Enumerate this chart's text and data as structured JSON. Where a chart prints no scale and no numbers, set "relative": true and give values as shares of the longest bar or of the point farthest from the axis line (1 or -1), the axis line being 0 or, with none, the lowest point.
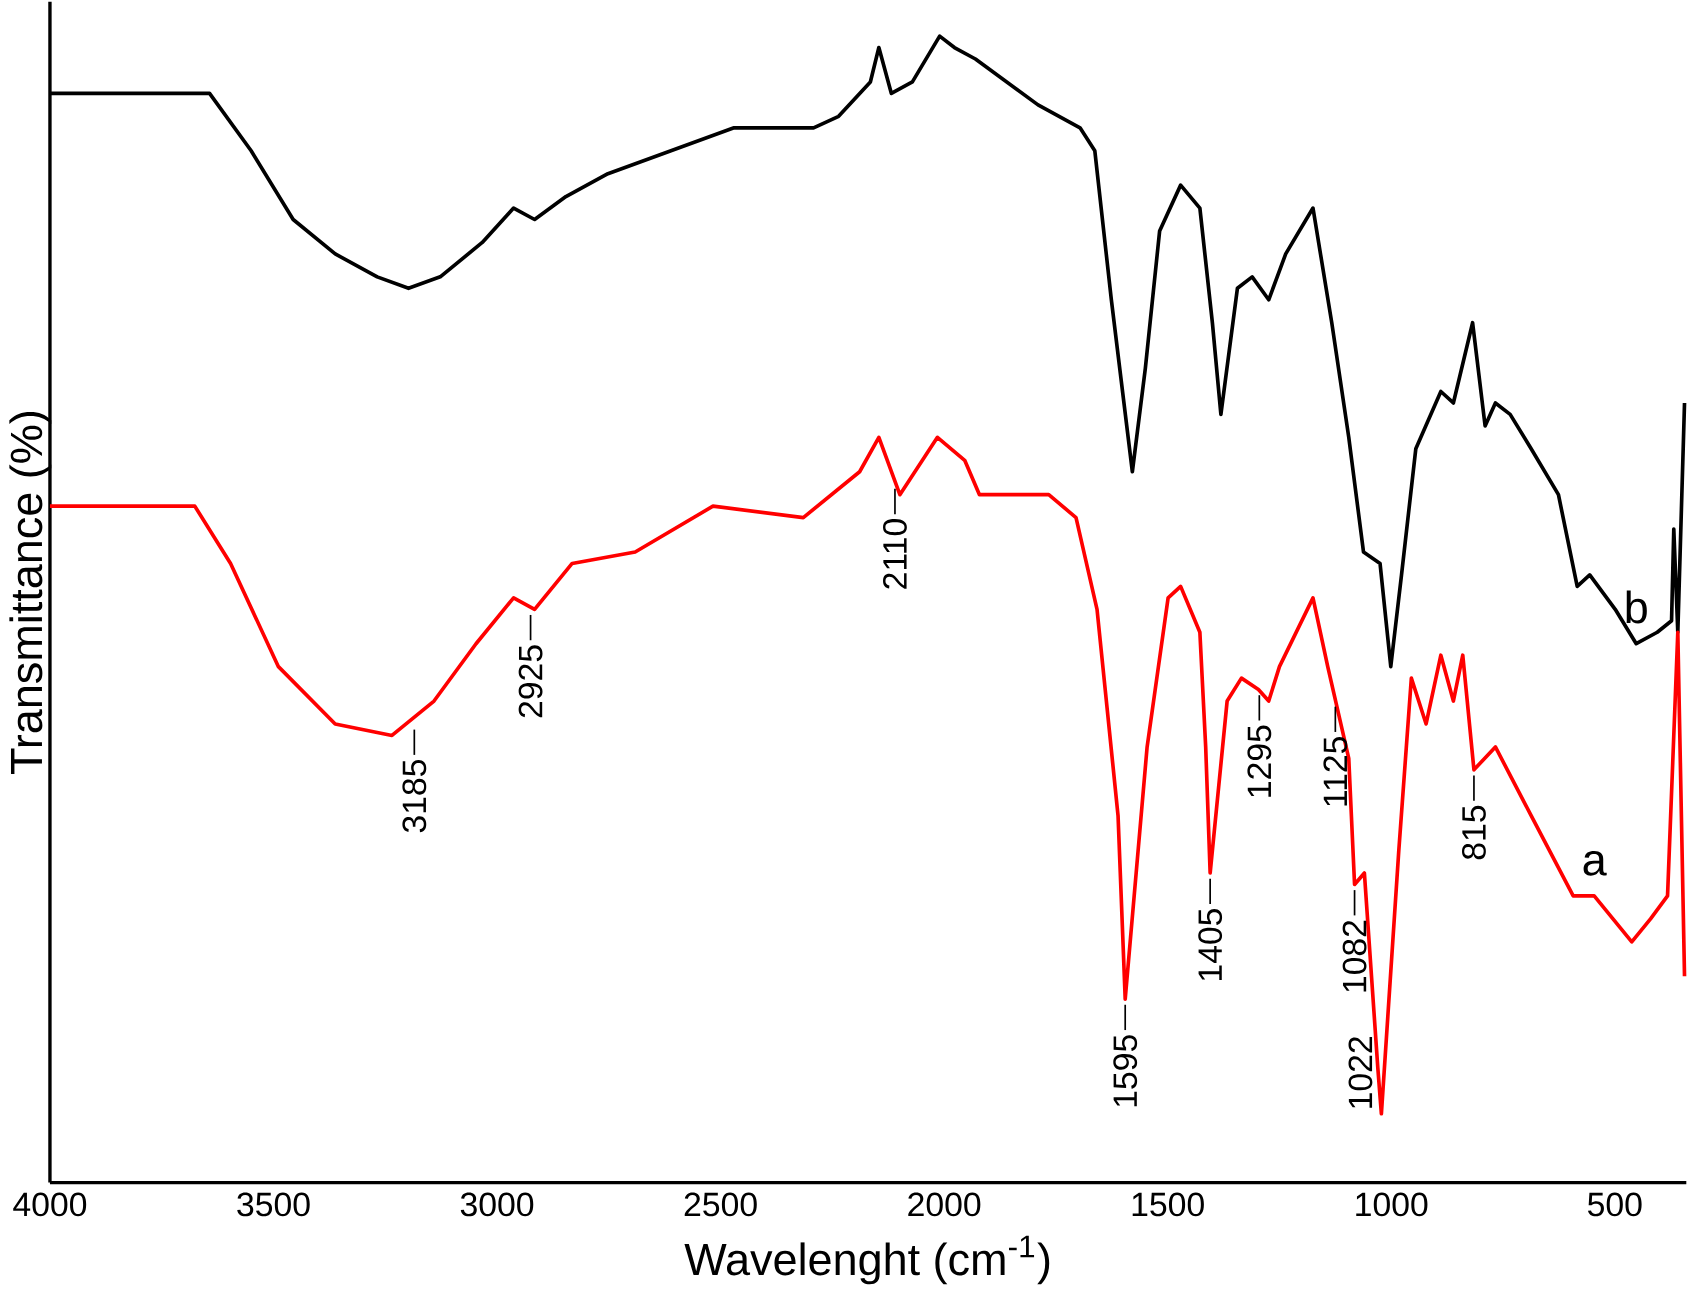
{
  "chart_data": {
    "type": "line",
    "relative": true,
    "xlabel": "Wavelenght (cm$^{-1}$)",
    "ylabel": "Transmittance (%)",
    "xlim": [
      4000,
      340
    ],
    "xticks": [
      4000,
      3500,
      3000,
      2500,
      2000,
      1500,
      1000,
      500
    ],
    "grid": false,
    "series": [
      {
        "name": "b",
        "color": "#000000",
        "x": [
          4000,
          3690,
          3643,
          3550,
          3456,
          3362,
          3268,
          3198,
          3127,
          3033,
          2963,
          2916,
          2846,
          2752,
          2611,
          2470,
          2292,
          2236,
          2165,
          2146,
          2118,
          2071,
          2010,
          1977,
          1930,
          1860,
          1790,
          1743,
          1696,
          1663,
          1626,
          1579,
          1550,
          1518,
          1471,
          1428,
          1400,
          1381,
          1344,
          1311,
          1274,
          1236,
          1175,
          1133,
          1095,
          1062,
          1025,
          1001,
          977,
          945,
          889,
          861,
          818,
          790,
          767,
          734,
          687,
          626,
          584,
          556,
          499,
          452,
          405,
          373,
          368,
          359,
          344
        ],
        "values": [
          0.95,
          0.95,
          0.95,
          0.9,
          0.84,
          0.81,
          0.79,
          0.78,
          0.79,
          0.82,
          0.85,
          0.84,
          0.86,
          0.88,
          0.9,
          0.92,
          0.92,
          0.93,
          0.96,
          0.99,
          0.95,
          0.96,
          1.0,
          0.99,
          0.98,
          0.96,
          0.94,
          0.93,
          0.92,
          0.9,
          0.77,
          0.62,
          0.71,
          0.83,
          0.87,
          0.85,
          0.75,
          0.67,
          0.78,
          0.79,
          0.77,
          0.81,
          0.85,
          0.75,
          0.65,
          0.55,
          0.54,
          0.45,
          0.53,
          0.64,
          0.69,
          0.68,
          0.75,
          0.66,
          0.68,
          0.67,
          0.64,
          0.6,
          0.52,
          0.53,
          0.5,
          0.47,
          0.48,
          0.49,
          0.57,
          0.48,
          0.68
        ]
      },
      {
        "name": "a",
        "color": "#ff0000",
        "x": [
          4000,
          3676,
          3596,
          3489,
          3362,
          3235,
          3141,
          3047,
          2963,
          2916,
          2832,
          2691,
          2517,
          2315,
          2189,
          2146,
          2099,
          2015,
          1954,
          1921,
          1766,
          1705,
          1658,
          1611,
          1595,
          1546,
          1499,
          1471,
          1428,
          1415,
          1405,
          1367,
          1335,
          1297,
          1274,
          1250,
          1175,
          1142,
          1095,
          1082,
          1060,
          1030,
          1022,
          983,
          955,
          922,
          889,
          861,
          840,
          815,
          767,
          687,
          593,
          546,
          462,
          420,
          382,
          359,
          344
        ],
        "values": [
          0.59,
          0.59,
          0.54,
          0.45,
          0.4,
          0.39,
          0.42,
          0.47,
          0.51,
          0.5,
          0.54,
          0.55,
          0.59,
          0.58,
          0.62,
          0.65,
          0.6,
          0.65,
          0.63,
          0.6,
          0.6,
          0.58,
          0.5,
          0.32,
          0.16,
          0.38,
          0.51,
          0.52,
          0.48,
          0.38,
          0.27,
          0.42,
          0.44,
          0.43,
          0.42,
          0.45,
          0.51,
          0.45,
          0.37,
          0.26,
          0.27,
          0.1,
          0.06,
          0.29,
          0.44,
          0.4,
          0.46,
          0.42,
          0.46,
          0.36,
          0.38,
          0.32,
          0.25,
          0.25,
          0.21,
          0.23,
          0.25,
          0.48,
          0.18
        ]
      }
    ],
    "annotations": [
      {
        "text": "3185",
        "x": 3185,
        "y": 0.4
      },
      {
        "text": "2925",
        "x": 2925,
        "y": 0.5
      },
      {
        "text": "2110",
        "x": 2110,
        "y": 0.61
      },
      {
        "text": "1595",
        "x": 1595,
        "y": 0.16
      },
      {
        "text": "1405",
        "x": 1405,
        "y": 0.27
      },
      {
        "text": "1295",
        "x": 1295,
        "y": 0.43
      },
      {
        "text": "1125",
        "x": 1125,
        "y": 0.42
      },
      {
        "text": "1082",
        "x": 1082,
        "y": 0.26
      },
      {
        "text": "1022",
        "x": 1022,
        "y": 0.06
      },
      {
        "text": "815",
        "x": 815,
        "y": 0.36
      }
    ]
  }
}
